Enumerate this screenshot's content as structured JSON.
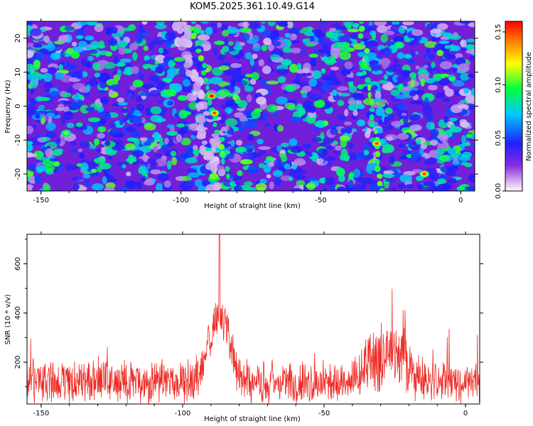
{
  "title": "KOM5.2025.361.10.49.G14",
  "chart_data": [
    {
      "type": "heatmap",
      "xlabel": "Height of straight line (km)",
      "ylabel": "Frequency (Hz)",
      "xlim": [
        -155,
        5
      ],
      "ylim": [
        -25,
        25
      ],
      "xticks": [
        -150,
        -100,
        -50,
        0
      ],
      "xtick_labels": [
        "-150",
        "-100",
        "-50",
        "0"
      ],
      "yticks": [
        20,
        10,
        0,
        -10,
        -20
      ],
      "ytick_labels": [
        "20",
        "10",
        "0",
        "-10",
        "-20"
      ],
      "colorbar": {
        "label": "Normalized spectral amplitude",
        "range": [
          0,
          0.16
        ],
        "ticks": [
          0.0,
          0.05,
          0.1,
          0.15
        ],
        "tick_labels": [
          "0.00",
          "0.05",
          "0.10",
          "0.15"
        ],
        "colors": [
          "#ffffff",
          "#8a2be2",
          "#0000ff",
          "#00ffff",
          "#00ff00",
          "#ffff00",
          "#ff0000"
        ]
      },
      "ridges": [
        {
          "x_at_top": -96,
          "x_at_bottom": -82,
          "peak_x": -89,
          "peak_y": 3
        },
        {
          "x_at_top": -36,
          "x_at_bottom": -28,
          "peak_x": -30,
          "peak_y": -11
        }
      ],
      "hot_spots": [
        {
          "x": -89,
          "y": 3,
          "value": 0.16
        },
        {
          "x": -88,
          "y": -2,
          "value": 0.15
        },
        {
          "x": -30,
          "y": -11,
          "value": 0.15
        },
        {
          "x": -13,
          "y": -20,
          "value": 0.15
        },
        {
          "x": -141,
          "y": -8,
          "value": 0.11
        },
        {
          "x": -22,
          "y": 18,
          "value": 0.1
        }
      ]
    },
    {
      "type": "line",
      "xlabel": "Height of straight line (km)",
      "ylabel": "SNR (10 * v/v)",
      "xlim": [
        -155,
        5
      ],
      "ylim": [
        30,
        720
      ],
      "xticks": [
        -150,
        -100,
        -50,
        0
      ],
      "xtick_labels": [
        "-150",
        "-100",
        "-50",
        "0"
      ],
      "yticks": [
        200,
        400,
        600
      ],
      "ytick_labels": [
        "200",
        "400",
        "600"
      ],
      "color": "#ee2a24",
      "features": {
        "baseline_mean": 120,
        "noise_spread": 90,
        "peak_x": -87,
        "peak_value": 720,
        "peak_cluster": [
          -92,
          -83
        ],
        "peak_cluster_level": 400,
        "secondary_hump": [
          -40,
          -15
        ],
        "secondary_hump_mean": 210
      }
    }
  ]
}
